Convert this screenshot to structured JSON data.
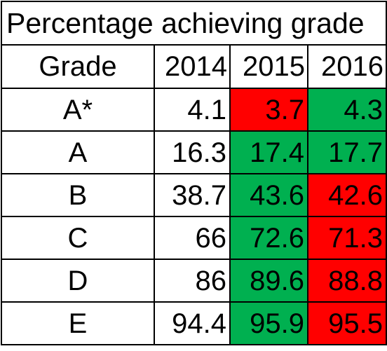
{
  "table": {
    "title": "Percentage achieving grade",
    "headers": [
      "Grade",
      "2014",
      "2015",
      "2016"
    ],
    "colors": {
      "up": "#00b050",
      "down": "#ff0000",
      "none": "#ffffff"
    },
    "rows": [
      {
        "grade": "A*",
        "y2014": "4.1",
        "y2015": "3.7",
        "y2016": "4.3",
        "fill2015": "down",
        "fill2016": "up"
      },
      {
        "grade": "A",
        "y2014": "16.3",
        "y2015": "17.4",
        "y2016": "17.7",
        "fill2015": "up",
        "fill2016": "up"
      },
      {
        "grade": "B",
        "y2014": "38.7",
        "y2015": "43.6",
        "y2016": "42.6",
        "fill2015": "up",
        "fill2016": "down"
      },
      {
        "grade": "C",
        "y2014": "66",
        "y2015": "72.6",
        "y2016": "71.3",
        "fill2015": "up",
        "fill2016": "down"
      },
      {
        "grade": "D",
        "y2014": "86",
        "y2015": "89.6",
        "y2016": "88.8",
        "fill2015": "up",
        "fill2016": "down"
      },
      {
        "grade": "E",
        "y2014": "94.4",
        "y2015": "95.9",
        "y2016": "95.5",
        "fill2015": "up",
        "fill2016": "down"
      }
    ]
  }
}
